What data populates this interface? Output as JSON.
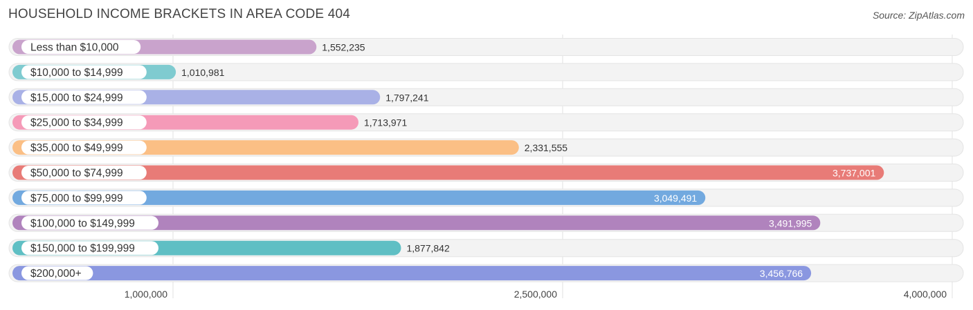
{
  "chart_data": {
    "type": "bar",
    "orientation": "horizontal",
    "title": "HOUSEHOLD INCOME BRACKETS IN AREA CODE 404",
    "source": "Source: ZipAtlas.com",
    "categories": [
      "Less than $10,000",
      "$10,000 to $14,999",
      "$15,000 to $24,999",
      "$25,000 to $34,999",
      "$35,000 to $49,999",
      "$50,000 to $74,999",
      "$75,000 to $99,999",
      "$100,000 to $149,999",
      "$150,000 to $199,999",
      "$200,000+"
    ],
    "values": [
      1552235,
      1010981,
      1797241,
      1713971,
      2331555,
      3737001,
      3049491,
      3491995,
      1877842,
      3456766
    ],
    "value_labels": [
      "1,552,235",
      "1,010,981",
      "1,797,241",
      "1,713,971",
      "2,331,555",
      "3,737,001",
      "3,049,491",
      "3,491,995",
      "1,877,842",
      "3,456,766"
    ],
    "colors": [
      "#c9a3cc",
      "#7fcbd0",
      "#a9b1e6",
      "#f59ab8",
      "#fbbf85",
      "#e87b77",
      "#72a9df",
      "#b083bd",
      "#5fbfc4",
      "#8a97e0"
    ],
    "xticks": [
      1000000,
      2500000,
      4000000
    ],
    "xtick_labels": [
      "1,000,000",
      "2,500,000",
      "4,000,000"
    ],
    "grid": true
  }
}
